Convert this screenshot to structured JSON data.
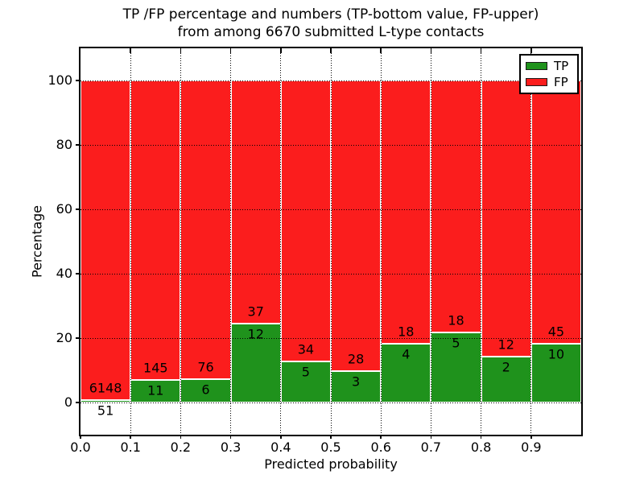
{
  "chart_data": {
    "type": "bar",
    "stacked": true,
    "title_line1": "TP /FP percentage and numbers (TP-bottom value, FP-upper)",
    "title_line2": "from among 6670 submitted L-type contacts",
    "xlabel": "Predicted probability",
    "ylabel": "Percentage",
    "total_contacts": 6670,
    "bin_width": 0.1,
    "bin_starts": [
      0.0,
      0.1,
      0.2,
      0.3,
      0.4,
      0.5,
      0.6,
      0.7,
      0.8,
      0.9
    ],
    "series": [
      {
        "name": "TP",
        "color": "#1f921c",
        "counts": [
          51,
          11,
          6,
          12,
          5,
          3,
          4,
          5,
          2,
          10
        ],
        "pct": [
          0.82,
          7.05,
          7.32,
          24.49,
          12.82,
          9.68,
          18.18,
          21.74,
          14.29,
          18.18
        ]
      },
      {
        "name": "FP",
        "color": "#fb1d1d",
        "counts": [
          6148,
          145,
          76,
          37,
          34,
          28,
          18,
          18,
          12,
          45
        ],
        "pct": [
          99.18,
          92.95,
          92.68,
          75.51,
          87.18,
          90.32,
          81.82,
          78.26,
          85.71,
          81.82
        ]
      }
    ],
    "x_tick_labels": [
      "0.0",
      "0.1",
      "0.2",
      "0.3",
      "0.4",
      "0.5",
      "0.6",
      "0.7",
      "0.8",
      "0.9"
    ],
    "y_tick_labels": [
      "0",
      "20",
      "40",
      "60",
      "80",
      "100"
    ],
    "y_ticks": [
      0,
      20,
      40,
      60,
      80,
      100
    ],
    "xlim": [
      0.0,
      1.0
    ],
    "ylim": [
      -10,
      110
    ],
    "grid": true,
    "grid_style": "dotted",
    "legend": {
      "position": "upper right",
      "entries": [
        "TP",
        "FP"
      ]
    }
  }
}
